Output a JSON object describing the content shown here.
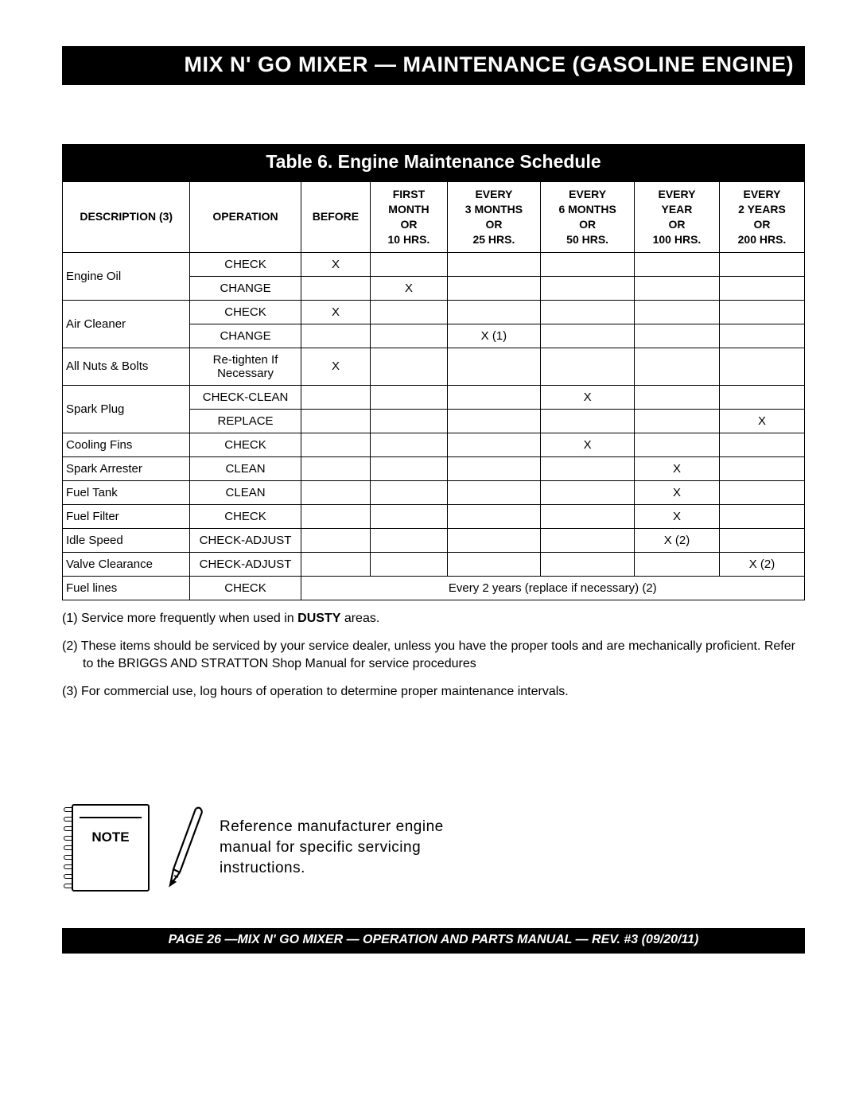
{
  "header": {
    "title": "MIX N' GO MIXER — MAINTENANCE (GASOLINE ENGINE)"
  },
  "table": {
    "title": "Table 6. Engine Maintenance Schedule",
    "columns": {
      "description": "DESCRIPTION (3)",
      "operation": "OPERATION",
      "before": "BEFORE",
      "first_month": "FIRST\nMONTH\nOR\n10 HRS.",
      "every_3m": "EVERY\n3 MONTHS\nOR\n25 HRS.",
      "every_6m": "EVERY\n6 MONTHS\nOR\n50 HRS.",
      "every_yr": "EVERY\nYEAR\nOR\n100 HRS.",
      "every_2yr": "EVERY\n2 YEARS\nOR\n200 HRS."
    },
    "rows": [
      {
        "desc": "Engine Oil",
        "ops": [
          {
            "op": "CHECK",
            "marks": [
              "X",
              "",
              "",
              "",
              "",
              ""
            ]
          },
          {
            "op": "CHANGE",
            "marks": [
              "",
              "X",
              "",
              "",
              "",
              ""
            ]
          }
        ]
      },
      {
        "desc": "Air Cleaner",
        "ops": [
          {
            "op": "CHECK",
            "marks": [
              "X",
              "",
              "",
              "",
              "",
              ""
            ]
          },
          {
            "op": "CHANGE",
            "marks": [
              "",
              "",
              "X (1)",
              "",
              "",
              ""
            ]
          }
        ]
      },
      {
        "desc": "All Nuts & Bolts",
        "ops": [
          {
            "op": "Re-tighten If Necessary",
            "marks": [
              "X",
              "",
              "",
              "",
              "",
              ""
            ]
          }
        ]
      },
      {
        "desc": "Spark Plug",
        "ops": [
          {
            "op": "CHECK-CLEAN",
            "marks": [
              "",
              "",
              "",
              "X",
              "",
              ""
            ]
          },
          {
            "op": "REPLACE",
            "marks": [
              "",
              "",
              "",
              "",
              "",
              "X"
            ]
          }
        ]
      },
      {
        "desc": "Cooling Fins",
        "ops": [
          {
            "op": "CHECK",
            "marks": [
              "",
              "",
              "",
              "X",
              "",
              ""
            ]
          }
        ]
      },
      {
        "desc": "Spark Arrester",
        "ops": [
          {
            "op": "CLEAN",
            "marks": [
              "",
              "",
              "",
              "",
              "X",
              ""
            ]
          }
        ]
      },
      {
        "desc": "Fuel Tank",
        "ops": [
          {
            "op": "CLEAN",
            "marks": [
              "",
              "",
              "",
              "",
              "X",
              ""
            ]
          }
        ]
      },
      {
        "desc": "Fuel Filter",
        "ops": [
          {
            "op": "CHECK",
            "marks": [
              "",
              "",
              "",
              "",
              "X",
              ""
            ]
          }
        ]
      },
      {
        "desc": "Idle Speed",
        "ops": [
          {
            "op": "CHECK-ADJUST",
            "marks": [
              "",
              "",
              "",
              "",
              "X (2)",
              ""
            ]
          }
        ]
      },
      {
        "desc": "Valve Clearance",
        "ops": [
          {
            "op": "CHECK-ADJUST",
            "marks": [
              "",
              "",
              "",
              "",
              "",
              "X (2)"
            ]
          }
        ]
      },
      {
        "desc": "Fuel lines",
        "ops": [
          {
            "op": "CHECK",
            "span_note": "Every 2 years (replace if necessary) (2)"
          }
        ]
      }
    ]
  },
  "footnotes": [
    "(1) Service more frequently when used in DUSTY areas.",
    "(2) These items should be serviced by your service dealer, unless you have the proper tools and are mechanically proficient. Refer to the BRIGGS AND STRATTON Shop Manual for service procedures",
    "(3) For commercial use, log hours of operation to determine proper maintenance intervals."
  ],
  "note": {
    "label": "NOTE",
    "text": "Reference manufacturer engine manual for specific servicing instructions."
  },
  "footer": {
    "text": "PAGE 26 —MIX N' GO MIXER — OPERATION AND PARTS MANUAL — REV. #3 (09/20/11)"
  }
}
